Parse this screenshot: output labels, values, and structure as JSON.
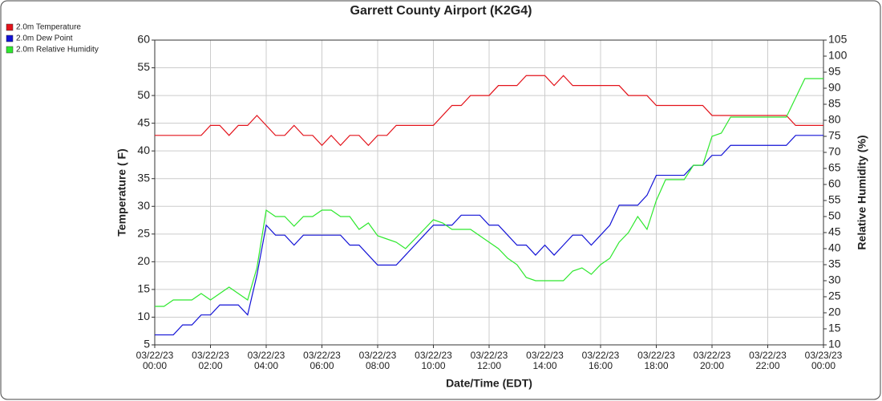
{
  "chart_data": {
    "type": "line",
    "title": "Garrett County Airport (K2G4)",
    "x_label": "Date/Time (EDT)",
    "y_label": "Temperature ( F)",
    "y2_label": "Relative Humidity (%)",
    "x": [
      0,
      20,
      40,
      60,
      80,
      100,
      120,
      140,
      160,
      180,
      200,
      220,
      240,
      260,
      280,
      300,
      320,
      340,
      360,
      380,
      400,
      420,
      440,
      460,
      480,
      500,
      520,
      540,
      560,
      580,
      600,
      620,
      640,
      660,
      680,
      700,
      720,
      740,
      760,
      780,
      800,
      820,
      840,
      860,
      880,
      900,
      920,
      940,
      960,
      980,
      1000,
      1020,
      1040,
      1060,
      1080,
      1100,
      1120,
      1140,
      1160,
      1180,
      1200,
      1220,
      1240,
      1260,
      1280,
      1300,
      1320,
      1340,
      1360,
      1380,
      1400,
      1420,
      1440
    ],
    "xlim": [
      0,
      1440
    ],
    "xticks": [
      {
        "value": 0,
        "label": "03/22/23\n00:00"
      },
      {
        "value": 120,
        "label": "03/22/23\n02:00"
      },
      {
        "value": 240,
        "label": "03/22/23\n04:00"
      },
      {
        "value": 360,
        "label": "03/22/23\n06:00"
      },
      {
        "value": 480,
        "label": "03/22/23\n08:00"
      },
      {
        "value": 600,
        "label": "03/22/23\n10:00"
      },
      {
        "value": 720,
        "label": "03/22/23\n12:00"
      },
      {
        "value": 840,
        "label": "03/22/23\n14:00"
      },
      {
        "value": 960,
        "label": "03/22/23\n16:00"
      },
      {
        "value": 1080,
        "label": "03/22/23\n18:00"
      },
      {
        "value": 1200,
        "label": "03/22/23\n20:00"
      },
      {
        "value": 1320,
        "label": "03/22/23\n22:00"
      },
      {
        "value": 1440,
        "label": "03/23/23\n00:00"
      }
    ],
    "ylim": [
      5,
      60
    ],
    "yticks": [
      5,
      10,
      15,
      20,
      25,
      30,
      35,
      40,
      45,
      50,
      55,
      60
    ],
    "y2lim": [
      10,
      105
    ],
    "y2ticks": [
      10,
      15,
      20,
      25,
      30,
      35,
      40,
      45,
      50,
      55,
      60,
      65,
      70,
      75,
      80,
      85,
      90,
      95,
      100,
      105
    ],
    "grid": true,
    "legend": "top-left",
    "series": [
      {
        "name": "2.0m Temperature",
        "color": "#e3131b",
        "values": [
          42.8,
          42.8,
          42.8,
          42.8,
          42.8,
          42.8,
          44.6,
          44.6,
          42.8,
          44.6,
          44.6,
          46.4,
          44.6,
          42.8,
          42.8,
          44.6,
          42.8,
          42.8,
          41,
          42.8,
          41,
          42.8,
          42.8,
          41,
          42.8,
          42.8,
          44.6,
          44.6,
          44.6,
          44.6,
          44.6,
          46.4,
          48.2,
          48.2,
          50,
          50,
          50,
          51.8,
          51.8,
          51.8,
          53.6,
          53.6,
          53.6,
          51.8,
          53.6,
          51.8,
          51.8,
          51.8,
          51.8,
          51.8,
          51.8,
          50,
          50,
          50,
          48.2,
          48.2,
          48.2,
          48.2,
          48.2,
          48.2,
          46.4,
          46.4,
          46.4,
          46.4,
          46.4,
          46.4,
          46.4,
          46.4,
          46.4,
          44.6,
          44.6,
          44.6,
          44.6
        ]
      },
      {
        "name": "2.0m Dew Point",
        "color": "#1212d6",
        "values": [
          6.8,
          6.8,
          6.8,
          8.6,
          8.6,
          10.4,
          10.4,
          12.2,
          12.2,
          12.2,
          10.4,
          17.6,
          26.6,
          24.8,
          24.8,
          23,
          24.8,
          24.8,
          24.8,
          24.8,
          24.8,
          23,
          23,
          21.2,
          19.4,
          19.4,
          19.4,
          21.2,
          23,
          24.8,
          26.6,
          26.6,
          26.6,
          28.4,
          28.4,
          28.4,
          26.6,
          26.6,
          24.8,
          23,
          23,
          21.2,
          23,
          21.2,
          23,
          24.8,
          24.8,
          23,
          24.8,
          26.6,
          30.2,
          30.2,
          30.2,
          32,
          35.6,
          35.6,
          35.6,
          35.6,
          37.4,
          37.4,
          39.2,
          39.2,
          41,
          41,
          41,
          41,
          41,
          41,
          41,
          42.8,
          42.8,
          42.8,
          42.8
        ]
      },
      {
        "name": "2.0m Relative Humidity",
        "color": "#2ee82e",
        "axis": "y2",
        "values": [
          22,
          22,
          24,
          24,
          24,
          26,
          24,
          26,
          28,
          26,
          24,
          34,
          52,
          50,
          50,
          47,
          50,
          50,
          52,
          52,
          50,
          50,
          46,
          48,
          44,
          43,
          42,
          40,
          43,
          46,
          49,
          48,
          46,
          46,
          46,
          44,
          42,
          40,
          37,
          35,
          31,
          30,
          30,
          30,
          30,
          33,
          34,
          32,
          35,
          37,
          42,
          45,
          50,
          46,
          55,
          61.5,
          61.5,
          61.5,
          66,
          66,
          75,
          76,
          81,
          81,
          81,
          81,
          81,
          81,
          81,
          87,
          93,
          93,
          93
        ]
      }
    ]
  }
}
